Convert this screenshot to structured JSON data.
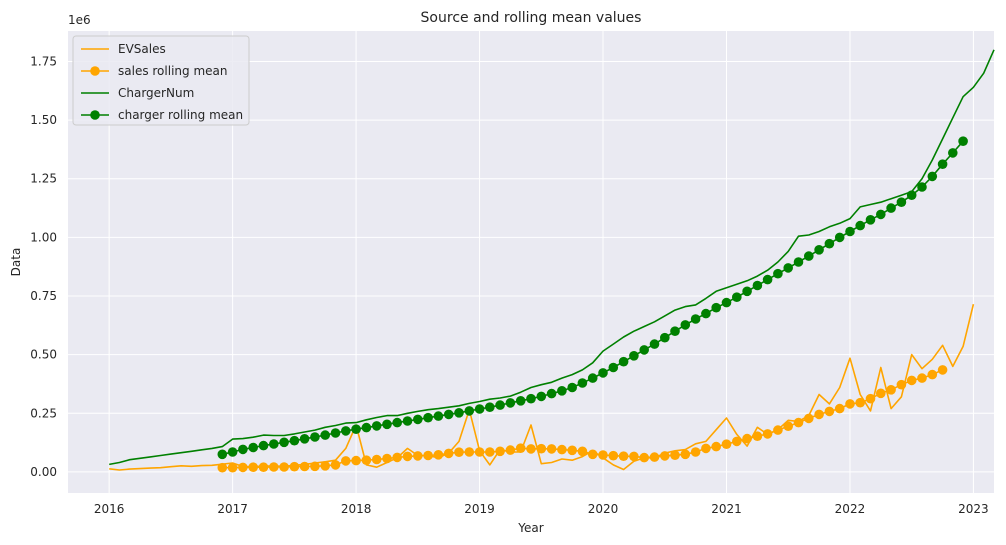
{
  "chart_data": {
    "type": "line",
    "title": "Source and rolling mean values",
    "xlabel": "Year",
    "ylabel": "Data",
    "y_offset_label": "1e6",
    "x_ticks": [
      "2016",
      "2017",
      "2018",
      "2019",
      "2020",
      "2021",
      "2022",
      "2023"
    ],
    "y_ticks": [
      "0.00",
      "0.25",
      "0.50",
      "0.75",
      "1.00",
      "1.25",
      "1.50",
      "1.75"
    ],
    "xlim": [
      "2015-09",
      "2023-03"
    ],
    "ylim": [
      -0.09,
      1.88
    ],
    "y_unit_multiplier": 1000000,
    "grid": true,
    "legend_position": "top-left",
    "start_month": "2016-01",
    "series": [
      {
        "name": "EVSales",
        "color": "#ffa500",
        "marker": false,
        "values": [
          0.013,
          0.008,
          0.012,
          0.014,
          0.016,
          0.018,
          0.022,
          0.026,
          0.024,
          0.027,
          0.028,
          0.033,
          0.038,
          0.023,
          0.022,
          0.025,
          0.025,
          0.024,
          0.028,
          0.032,
          0.038,
          0.043,
          0.05,
          0.1,
          0.2,
          0.03,
          0.02,
          0.04,
          0.06,
          0.1,
          0.07,
          0.07,
          0.06,
          0.08,
          0.13,
          0.265,
          0.09,
          0.03,
          0.095,
          0.085,
          0.085,
          0.2,
          0.035,
          0.04,
          0.055,
          0.05,
          0.065,
          0.09,
          0.06,
          0.03,
          0.01,
          0.045,
          0.06,
          0.06,
          0.08,
          0.09,
          0.095,
          0.12,
          0.13,
          0.18,
          0.23,
          0.16,
          0.11,
          0.19,
          0.16,
          0.18,
          0.22,
          0.215,
          0.24,
          0.33,
          0.29,
          0.36,
          0.485,
          0.33,
          0.26,
          0.445,
          0.27,
          0.32,
          0.5,
          0.44,
          0.48,
          0.54,
          0.45,
          0.535,
          0.715
        ]
      },
      {
        "name": "sales rolling mean",
        "color": "#ffa500",
        "marker": true,
        "start_index": 11,
        "values": [
          0.018,
          0.018,
          0.019,
          0.02,
          0.02,
          0.021,
          0.021,
          0.022,
          0.023,
          0.024,
          0.026,
          0.03,
          0.047,
          0.048,
          0.05,
          0.053,
          0.057,
          0.062,
          0.066,
          0.068,
          0.07,
          0.073,
          0.079,
          0.084,
          0.085,
          0.085,
          0.085,
          0.088,
          0.093,
          0.101,
          0.098,
          0.099,
          0.098,
          0.095,
          0.092,
          0.088,
          0.075,
          0.072,
          0.069,
          0.067,
          0.066,
          0.061,
          0.063,
          0.068,
          0.071,
          0.075,
          0.085,
          0.1,
          0.108,
          0.118,
          0.13,
          0.142,
          0.152,
          0.162,
          0.178,
          0.195,
          0.21,
          0.228,
          0.245,
          0.258,
          0.27,
          0.29,
          0.295,
          0.312,
          0.335,
          0.35,
          0.372,
          0.39,
          0.4,
          0.415,
          0.435
        ]
      },
      {
        "name": "ChargerNum",
        "color": "#008000",
        "marker": false,
        "values": [
          0.032,
          0.04,
          0.052,
          0.058,
          0.064,
          0.07,
          0.076,
          0.082,
          0.088,
          0.094,
          0.1,
          0.108,
          0.14,
          0.142,
          0.148,
          0.157,
          0.155,
          0.155,
          0.162,
          0.17,
          0.178,
          0.19,
          0.198,
          0.208,
          0.21,
          0.222,
          0.232,
          0.24,
          0.24,
          0.25,
          0.258,
          0.265,
          0.27,
          0.276,
          0.282,
          0.292,
          0.3,
          0.31,
          0.315,
          0.323,
          0.34,
          0.36,
          0.372,
          0.382,
          0.4,
          0.415,
          0.435,
          0.465,
          0.515,
          0.545,
          0.575,
          0.6,
          0.62,
          0.64,
          0.665,
          0.69,
          0.705,
          0.712,
          0.74,
          0.77,
          0.785,
          0.8,
          0.815,
          0.835,
          0.86,
          0.895,
          0.94,
          1.005,
          1.01,
          1.025,
          1.045,
          1.06,
          1.08,
          1.13,
          1.14,
          1.15,
          1.165,
          1.18,
          1.195,
          1.25,
          1.33,
          1.42,
          1.51,
          1.6,
          1.64,
          1.7,
          1.8
        ]
      },
      {
        "name": "charger rolling mean",
        "color": "#008000",
        "marker": true,
        "start_index": 11,
        "values": [
          0.075,
          0.085,
          0.096,
          0.104,
          0.112,
          0.119,
          0.126,
          0.133,
          0.141,
          0.149,
          0.157,
          0.166,
          0.175,
          0.182,
          0.189,
          0.196,
          0.203,
          0.21,
          0.217,
          0.224,
          0.231,
          0.238,
          0.245,
          0.252,
          0.26,
          0.268,
          0.276,
          0.285,
          0.294,
          0.303,
          0.312,
          0.322,
          0.334,
          0.346,
          0.36,
          0.379,
          0.4,
          0.422,
          0.445,
          0.47,
          0.495,
          0.52,
          0.545,
          0.572,
          0.6,
          0.627,
          0.652,
          0.675,
          0.7,
          0.722,
          0.745,
          0.77,
          0.795,
          0.82,
          0.845,
          0.87,
          0.895,
          0.92,
          0.947,
          0.973,
          1.0,
          1.025,
          1.05,
          1.075,
          1.098,
          1.125,
          1.15,
          1.18,
          1.215,
          1.26,
          1.312,
          1.36,
          1.41
        ]
      }
    ]
  }
}
